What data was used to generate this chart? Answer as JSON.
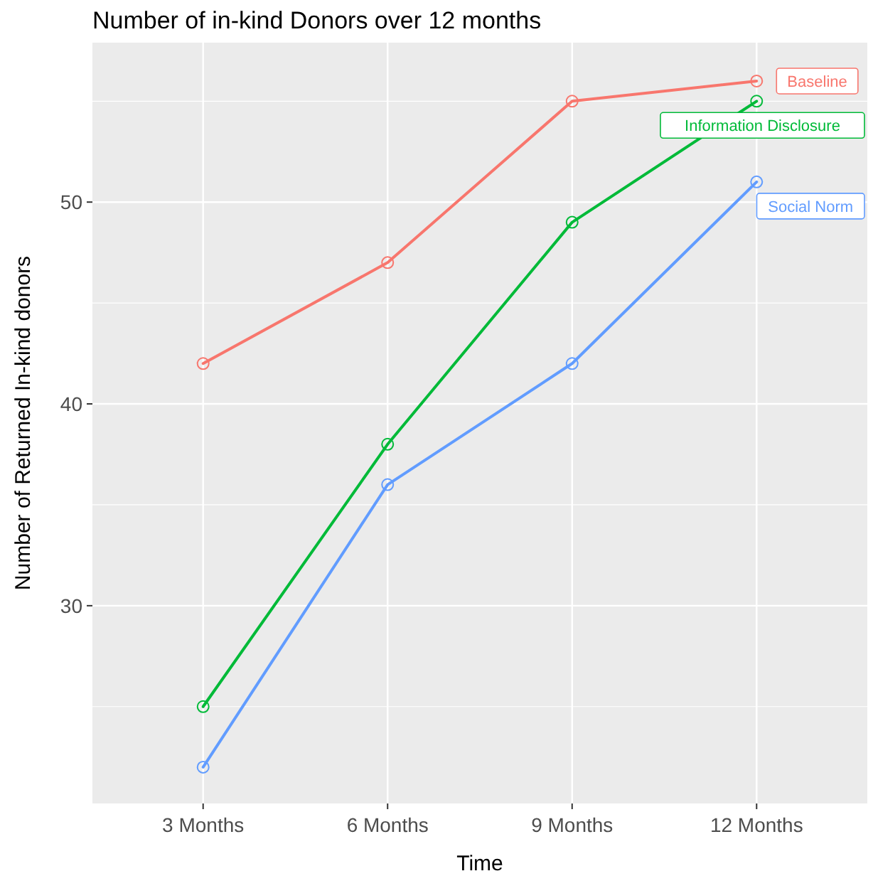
{
  "chart_data": {
    "type": "line",
    "title": "Number of in-kind Donors over 12 months",
    "xlabel": "Time",
    "ylabel": "Number of Returned In-kind donors",
    "categories": [
      "3 Months",
      "6 Months",
      "9 Months",
      "12 Months"
    ],
    "series": [
      {
        "name": "Baseline",
        "color": "#f8766d",
        "values": [
          42,
          47,
          55,
          56
        ]
      },
      {
        "name": "Information Disclosure",
        "color": "#00ba38",
        "values": [
          25,
          38,
          49,
          55
        ]
      },
      {
        "name": "Social Norm",
        "color": "#619cff",
        "values": [
          22,
          36,
          42,
          51
        ]
      }
    ],
    "ylim": [
      20.2,
      57.9
    ],
    "yticks": [
      30,
      40,
      50
    ],
    "grid": true,
    "marker": "circle",
    "line_style": "solid"
  }
}
